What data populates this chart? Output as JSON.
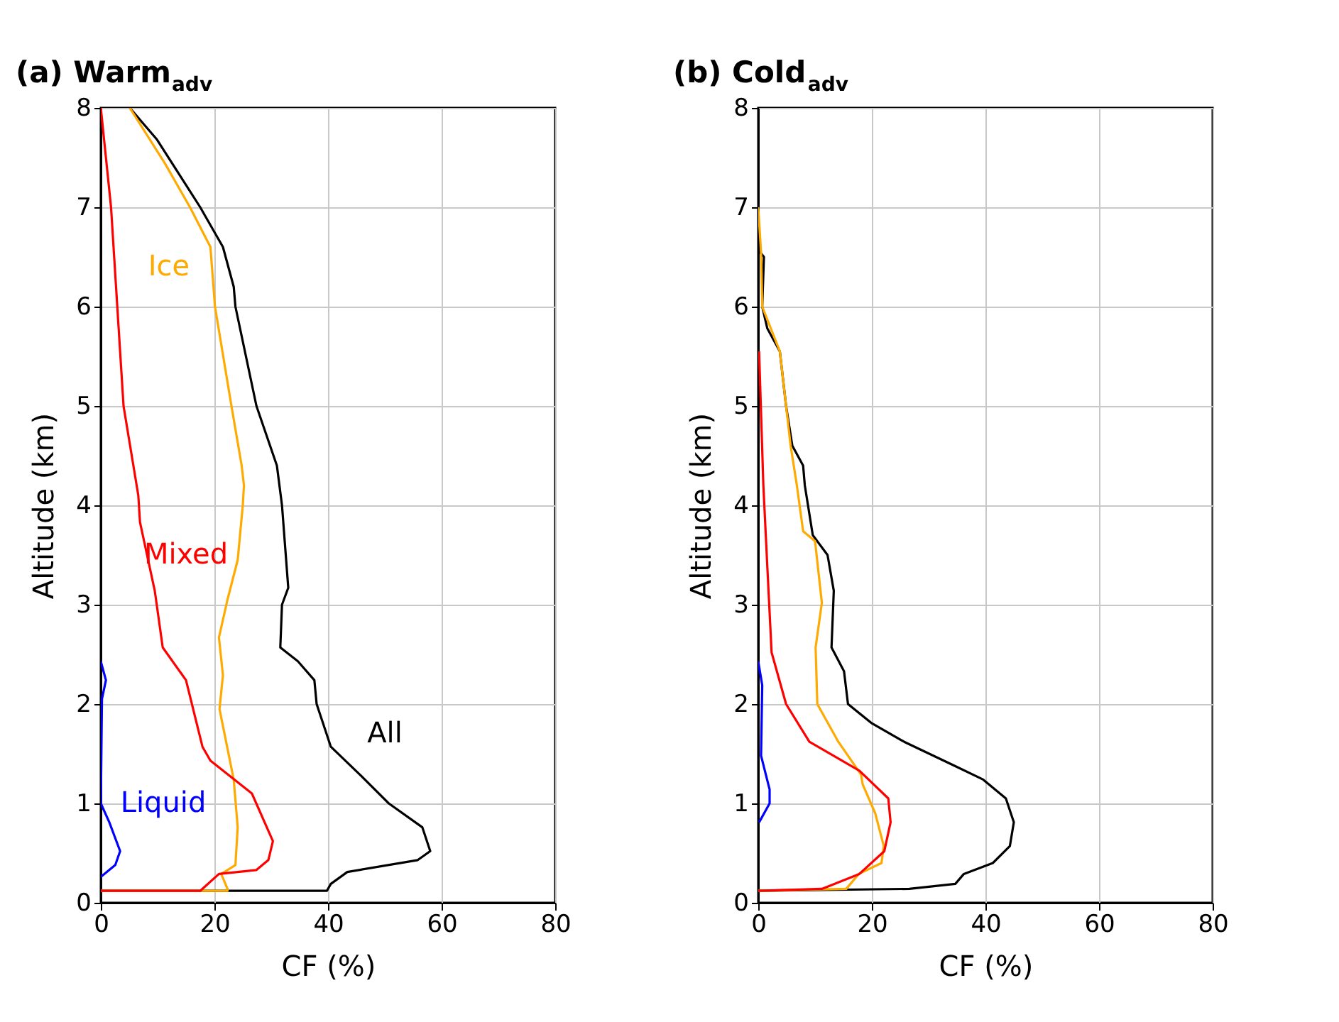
{
  "chart_data": [
    {
      "type": "line",
      "title": "(a) Warm$_{adv}$",
      "xlabel": "CF (%)",
      "ylabel": "Altitude (km)",
      "xlim": [
        0,
        80
      ],
      "ylim": [
        0,
        8
      ],
      "xticks": [
        0,
        20,
        40,
        60,
        80
      ],
      "yticks": [
        0,
        1,
        2,
        3,
        4,
        5,
        6,
        7,
        8
      ],
      "grid": true,
      "series": [
        {
          "name": "All",
          "color": "#000000",
          "x": [
            5.1,
            9.9,
            17.5,
            21.5,
            23.4,
            23.7,
            27.4,
            31,
            31.9,
            33,
            31.9,
            31.6,
            34.7,
            37.6,
            38,
            40.5,
            45.6,
            50.7,
            56.6,
            58,
            55.8,
            43.4,
            40.5,
            39.8,
            0
          ],
          "values": [
            8,
            7.68,
            7.0,
            6.6,
            6.2,
            6.0,
            5.0,
            4.4,
            4.0,
            3.17,
            3.0,
            2.57,
            2.43,
            2.24,
            2.0,
            1.57,
            1.29,
            1.0,
            0.76,
            0.52,
            0.43,
            0.31,
            0.19,
            0.12,
            0.12
          ]
        },
        {
          "name": "Ice",
          "color": "#ffaa00",
          "x": [
            5.1,
            11.3,
            15.7,
            19.3,
            20.1,
            23,
            24.8,
            25.2,
            25.0,
            24.1,
            22.3,
            20.8,
            21.5,
            20.9,
            23.4,
            24.1,
            23.7,
            21.2,
            22.3,
            22.3,
            0
          ],
          "values": [
            8,
            7.44,
            7.0,
            6.6,
            6.0,
            5.0,
            4.4,
            4.2,
            4.0,
            3.45,
            3.05,
            2.67,
            2.29,
            1.95,
            1.24,
            0.76,
            0.38,
            0.29,
            0.14,
            0.12,
            0.12
          ]
        },
        {
          "name": "Mixed",
          "color": "#ff0000",
          "x": [
            0,
            1.8,
            2.9,
            4.0,
            6.6,
            6.9,
            9.5,
            10.9,
            15,
            17.9,
            19.3,
            26.6,
            30.3,
            29.5,
            27.4,
            20.8,
            17.5,
            0
          ],
          "values": [
            8,
            7.0,
            6.0,
            5.0,
            4.1,
            3.83,
            3.14,
            2.57,
            2.24,
            1.57,
            1.43,
            1.1,
            0.62,
            0.43,
            0.33,
            0.29,
            0.12,
            0.12
          ]
        },
        {
          "name": "Liquid",
          "color": "#0000ff",
          "x": [
            0,
            0.9,
            0.2,
            0,
            1.5,
            3.4,
            2.55,
            0
          ],
          "values": [
            2.43,
            2.24,
            2.05,
            1.0,
            0.81,
            0.52,
            0.38,
            0.26
          ]
        }
      ]
    },
    {
      "type": "line",
      "title": "(b) Cold$_{adv}$",
      "xlabel": "CF (%)",
      "ylabel": "Altitude (km)",
      "xlim": [
        0,
        80
      ],
      "ylim": [
        0,
        8
      ],
      "xticks": [
        0,
        20,
        40,
        60,
        80
      ],
      "yticks": [
        0,
        1,
        2,
        3,
        4,
        5,
        6,
        7,
        8
      ],
      "grid": true,
      "series": [
        {
          "color": "#000000",
          "x": [
            0,
            0.15,
            1.0,
            0.7,
            1.6,
            3.8,
            4.9,
            6.0,
            7.9,
            8.2,
            9.6,
            12.2,
            13.3,
            12.9,
            15.1,
            15.8,
            19.9,
            25.7,
            34.5,
            39.6,
            43.6,
            45,
            44.3,
            41.3,
            36.2,
            34.7,
            26.6,
            0
          ],
          "values": [
            7.0,
            6.56,
            6.5,
            6.0,
            5.78,
            5.55,
            5.0,
            4.6,
            4.4,
            4.2,
            3.7,
            3.5,
            3.14,
            2.57,
            2.33,
            2.0,
            1.81,
            1.62,
            1.38,
            1.24,
            1.05,
            0.81,
            0.57,
            0.4,
            0.29,
            0.19,
            0.14,
            0.12
          ]
        },
        {
          "color": "#ffaa00",
          "x": [
            0,
            0.5,
            0.7,
            3.8,
            4.9,
            5.7,
            6.8,
            7.9,
            10.0,
            11.2,
            10.1,
            10.4,
            14.1,
            18.1,
            18.4,
            20.6,
            22.1,
            21.7,
            17.7,
            15.5,
            0
          ],
          "values": [
            7.0,
            6.54,
            6.0,
            5.55,
            5.0,
            4.6,
            4.2,
            3.74,
            3.64,
            3.02,
            2.57,
            2.0,
            1.62,
            1.29,
            1.19,
            0.9,
            0.57,
            0.4,
            0.29,
            0.14,
            0.12
          ]
        },
        {
          "color": "#ff0000",
          "x": [
            0.15,
            0.9,
            1.6,
            2.35,
            4.9,
            9.0,
            17.8,
            22.9,
            23.3,
            22.2,
            17.8,
            11.2,
            0
          ],
          "values": [
            5.55,
            4.2,
            3.38,
            2.52,
            2.0,
            1.62,
            1.33,
            1.05,
            0.81,
            0.52,
            0.29,
            0.14,
            0.12
          ]
        },
        {
          "color": "#0000ff",
          "x": [
            0,
            0.7,
            0.5,
            2.0,
            2.0,
            0.15
          ],
          "values": [
            2.43,
            2.19,
            1.48,
            1.14,
            1.0,
            0.81
          ]
        }
      ]
    }
  ]
}
